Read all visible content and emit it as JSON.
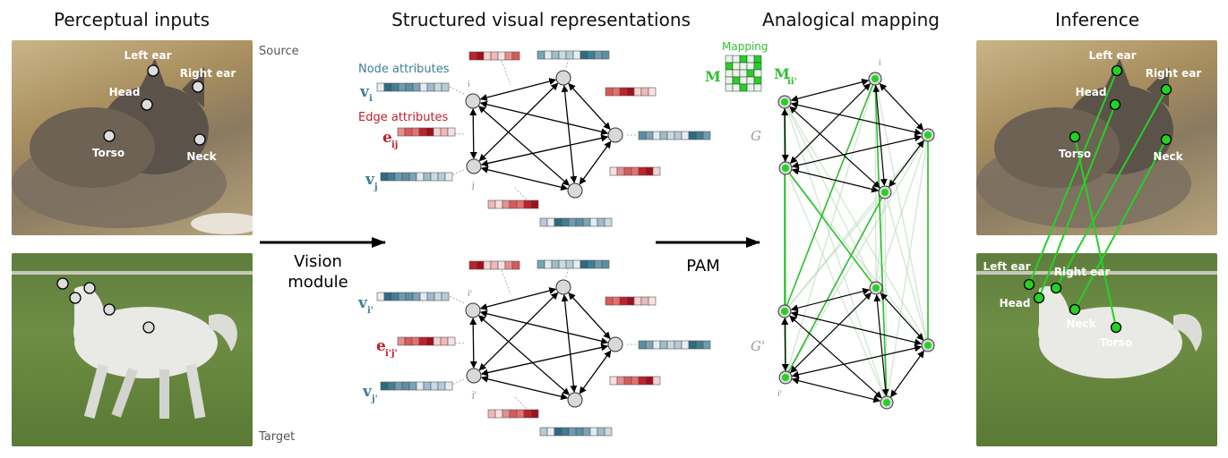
{
  "headings": {
    "perceptual": "Perceptual inputs",
    "structured": "Structured visual representations",
    "analogical": "Analogical mapping",
    "inference": "Inference"
  },
  "photo_labels": {
    "source": "Source",
    "target": "Target"
  },
  "source_keypoints": [
    "Left ear",
    "Right ear",
    "Head",
    "Torso",
    "Neck"
  ],
  "inference_target_keypoints": [
    "Left ear",
    "Right ear",
    "Head",
    "Neck",
    "Torso"
  ],
  "arrows": {
    "vision_line1": "Vision",
    "vision_line2": "module",
    "pam": "PAM"
  },
  "graph_labels": {
    "node_attributes": "Node attributes",
    "edge_attributes": "Edge attributes",
    "v": "v",
    "e": "e",
    "sub_i": "i",
    "sub_j": "j",
    "sub_ij": "ij",
    "sub_ip": "i'",
    "sub_jp": "j'",
    "sub_ipjp": "i'j'",
    "node_i": "i",
    "node_j": "j",
    "node_ip": "i'",
    "node_jp": "j'"
  },
  "mapping": {
    "title": "Mapping",
    "M": "M",
    "M_sub": "ii'",
    "G": "G",
    "Gp": "G'"
  },
  "colors": {
    "node_attr": "#3e7f96",
    "edge_attr": "#c0202a",
    "mapping_green": "#2fbf2f",
    "grid_green": "#26d126"
  }
}
